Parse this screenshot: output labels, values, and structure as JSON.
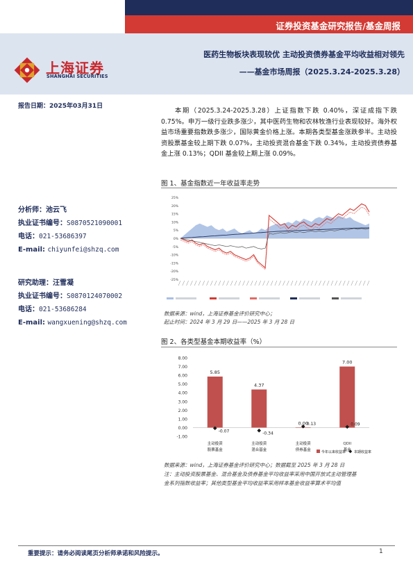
{
  "header": {
    "report_type": "证券投资基金研究报告/基金周报",
    "logo_cn": "上海证券",
    "logo_en": "SHANGHAI SECURITIES",
    "title_main": "医药生物板块表现较优 主动投资债券基金平均收益相对领先",
    "title_sub": "——基金市场周报（2025.3.24-2025.3.28）",
    "report_date": "报告日期：2025年03月31日"
  },
  "analyst": {
    "name_label": "分析师：池云飞",
    "cert_label": "执业证书编号：",
    "cert_value": "S0870521090001",
    "phone_label": "电话：",
    "phone_value": "021-53686397",
    "email_label": "E-mail:",
    "email_value": "chiyunfei@shzq.com"
  },
  "assistant": {
    "name_label": "研究助理：汪雪凝",
    "cert_label": "执业证书编号：",
    "cert_value": "S0870124070002",
    "phone_label": "电话：",
    "phone_value": "021-53686284",
    "email_label": "E-mail:",
    "email_value": "wangxuening@shzq.com"
  },
  "summary": "本期（2025.3.24-2025.3.28）上证指数下跌 0.40%，深证成指下跌 0.75%。申万一级行业跌多涨少，其中医药生物和农林牧渔行业表现较好。海外权益市场重要指数跌多涨少，国际黄金价格上涨。本期各类型基金涨跌参半。主动投资股票基金较上期下跌 0.07%，主动投资混合基金下跌 0.34%，主动投资债券基金上涨 0.13%；QDII 基金较上期上涨 0.09%。",
  "figure1": {
    "title": "图 1、基金指数近一年收益率走势",
    "source_line1": "数据来源：wind，上海证券基金评价研究中心；",
    "source_line2": "起止时间：2024 年 3 月 29 日——2025 年 3 月 28 日",
    "colors": {
      "area": "#a9bfe3",
      "red1": "#d23a33",
      "red2": "#e26a64",
      "navy": "#1f2d5a",
      "dark": "#555555"
    }
  },
  "figure2": {
    "title": "图 2、各类型基金本期收益率（%）",
    "source_line1": "数据来源：wind，上海证券基金评价研究中心；数据截至 2025 年 3 月 28 日",
    "note_line1": "注：主动投资股票基金、混合基金及债券基金平均收益率采用中国开放式主动管理基",
    "note_line2": "金系列指数收益率；其他类型基金平均收益率采用样本基金收益率算术平均值",
    "colors": {
      "bar": "#c0504d",
      "marker": "#1a1a1a"
    }
  },
  "chart_data": [
    {
      "type": "line",
      "title": "",
      "ylim": [
        -25,
        25
      ],
      "y_ticks": [
        "25%",
        "20%",
        "15%",
        "10%",
        "5%",
        "0%",
        "-5%",
        "-10%",
        "-15%",
        "-20%",
        "-25%"
      ],
      "x_range": [
        "2024-03-29",
        "2025-03-28"
      ],
      "series": [
        {
          "values": [
            0,
            2,
            4,
            6,
            8,
            9,
            8,
            7,
            8,
            6,
            5,
            6,
            4,
            5,
            6,
            4,
            3,
            4,
            5,
            3,
            4,
            6,
            5,
            7,
            8,
            9,
            8,
            9,
            10,
            9,
            11,
            10,
            12,
            11,
            10,
            12,
            13,
            12,
            14,
            13,
            12,
            14,
            13,
            12,
            13,
            11,
            10,
            9,
            8,
            9
          ]
        },
        {
          "values": [
            0,
            -1,
            -2,
            -1,
            -3,
            -4,
            -3,
            -5,
            -6,
            -7,
            -6,
            -8,
            -9,
            -8,
            -10,
            -11,
            -12,
            -13,
            -12,
            -10,
            -14,
            -16,
            -18,
            14,
            12,
            10,
            8,
            9,
            6,
            8,
            7,
            9,
            10,
            8,
            7,
            9,
            8,
            10,
            12,
            11,
            13,
            15,
            14,
            16,
            18,
            17,
            19,
            21,
            20,
            16
          ]
        },
        {
          "values": [
            -1,
            -2,
            -3,
            -2,
            -4,
            -5,
            -4,
            -6,
            -7,
            -8,
            -7,
            -9,
            -10,
            -9,
            -11,
            -12,
            -13,
            -14,
            -13,
            -11,
            -15,
            -17,
            -19,
            12,
            10,
            8,
            6,
            7,
            4,
            6,
            5,
            7,
            8,
            6,
            5,
            7,
            6,
            8,
            10,
            9,
            11,
            13,
            12,
            14,
            16,
            15,
            17,
            19,
            18,
            14
          ]
        },
        {
          "values": [
            0,
            0.2,
            0.4,
            0.5,
            0.7,
            0.9,
            1,
            1.2,
            1.4,
            1.5,
            1.7,
            1.9,
            2,
            2.2,
            2.4,
            2.5,
            2.7,
            2.9,
            3,
            3.2,
            3.4,
            3.5,
            3.7,
            3.9,
            4,
            4.2,
            4.3,
            4.4,
            4.5,
            4.6,
            4.7,
            4.8,
            4.9,
            5,
            5.1,
            5.2,
            5.3,
            5.4,
            5.5,
            5.6,
            5.7,
            5.8,
            5.9,
            6,
            6.1,
            6.2,
            6.2,
            6.3,
            6.3,
            6.4
          ]
        },
        {
          "values": [
            0,
            -0.5,
            -1,
            -1.5,
            -2,
            -2.5,
            -3,
            -3.5,
            -4,
            -4.5,
            -4,
            -4.5,
            -5,
            -4.5,
            -5,
            -5.5,
            -5,
            -6,
            -5.5,
            -5,
            -6,
            -6.5,
            -6,
            3,
            2.5,
            3,
            3.5,
            3,
            3.5,
            4,
            3.5,
            4,
            3.5,
            4,
            4.5,
            4,
            4.5,
            4,
            4.5,
            5,
            4.5,
            5,
            5.5,
            5,
            5.5,
            6,
            5.5,
            6,
            5.5,
            6
          ]
        }
      ]
    },
    {
      "type": "bar",
      "title": "",
      "categories": [
        "主动投资股票基金",
        "主动投资混合基金",
        "主动投资债券基金",
        "QDII基金"
      ],
      "series": [
        {
          "name": "今年以来收益率",
          "values": [
            5.85,
            4.37,
            0.0,
            7.0
          ]
        },
        {
          "name": "本期收益率",
          "values": [
            -0.07,
            -0.34,
            0.13,
            0.09
          ]
        }
      ],
      "bar_labels": [
        "5.85",
        "4.37",
        "0.00",
        "7.00"
      ],
      "marker_labels": [
        "-0.07",
        "-0.34",
        "0.13",
        "0.09"
      ],
      "y_ticks": [
        "8.00",
        "7.00",
        "6.00",
        "5.00",
        "4.00",
        "3.00",
        "2.00",
        "1.00",
        "0.00",
        "-1.00"
      ],
      "ylim": [
        -1,
        8
      ],
      "legend": "bottom-right"
    }
  ],
  "footer": {
    "notice": "重要提示：请务必阅读尾页分析师承诺和风险提示。",
    "page": "1"
  }
}
